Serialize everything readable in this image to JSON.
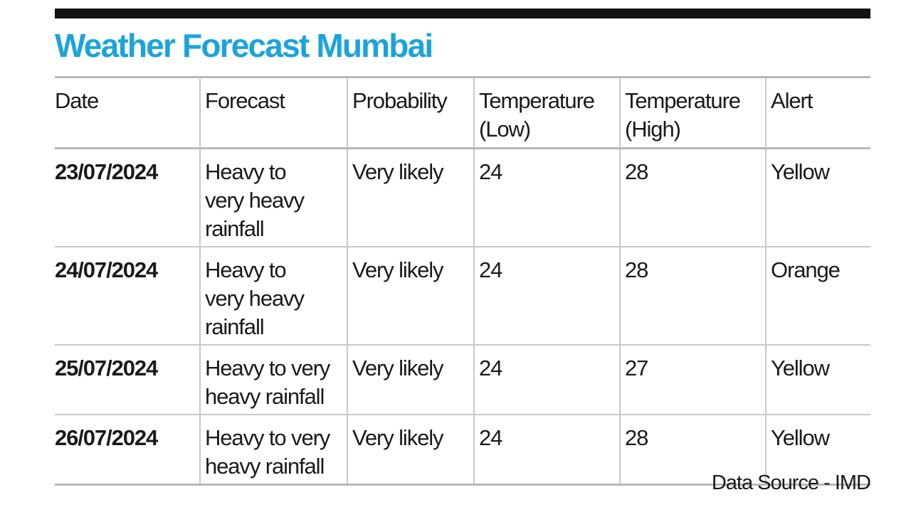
{
  "title": "Weather Forecast Mumbai",
  "source": "Data Source - IMD",
  "colors": {
    "title": "#1ba3dc",
    "top_rule": "#111111",
    "grid": "#c8c8c8"
  },
  "chart_data": {
    "type": "table",
    "title": "Weather Forecast Mumbai",
    "columns": [
      "Date",
      "Forecast",
      "Probability",
      "Temperature (Low)",
      "Temperature (High)",
      "Alert"
    ],
    "rows": [
      {
        "date": "23/07/2024",
        "forecast": "Heavy to very heavy rainfall",
        "probability": "Very likely",
        "temp_low": "24",
        "temp_high": "28",
        "alert": "Yellow"
      },
      {
        "date": "24/07/2024",
        "forecast": "Heavy to very heavy rainfall",
        "probability": "Very likely",
        "temp_low": "24",
        "temp_high": "28",
        "alert": "Orange"
      },
      {
        "date": "25/07/2024",
        "forecast": "Heavy to very heavy rainfall",
        "probability": "Very likely",
        "temp_low": "24",
        "temp_high": "27",
        "alert": "Yellow"
      },
      {
        "date": "26/07/2024",
        "forecast": "Heavy to very heavy rainfall",
        "probability": "Very likely",
        "temp_low": "24",
        "temp_high": "28",
        "alert": "Yellow"
      }
    ],
    "source": "Data Source - IMD"
  }
}
